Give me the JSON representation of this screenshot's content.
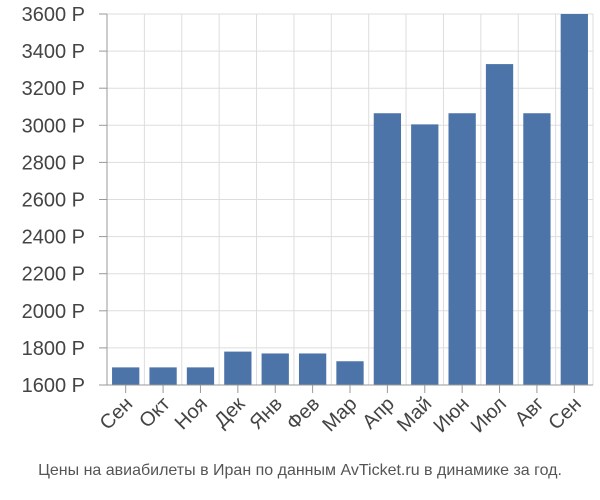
{
  "chart_data": {
    "type": "bar",
    "categories": [
      "Сен",
      "Окт",
      "Ноя",
      "Дек",
      "Янв",
      "Фев",
      "Мар",
      "Апр",
      "Май",
      "Июн",
      "Июл",
      "Авг",
      "Сен"
    ],
    "values": [
      1695,
      1695,
      1695,
      1780,
      1770,
      1770,
      1728,
      3065,
      3005,
      3065,
      3330,
      3065,
      3600
    ],
    "ylim": [
      1600,
      3600
    ],
    "yticks": [
      1600,
      1800,
      2000,
      2200,
      2400,
      2600,
      2800,
      3000,
      3200,
      3400,
      3600
    ],
    "y_unit": "Р",
    "grid": true,
    "bar_color": "#4c74a8",
    "caption": "Цены на авиабилеты в Иран по данным AvTicket.ru в динамике за год."
  }
}
